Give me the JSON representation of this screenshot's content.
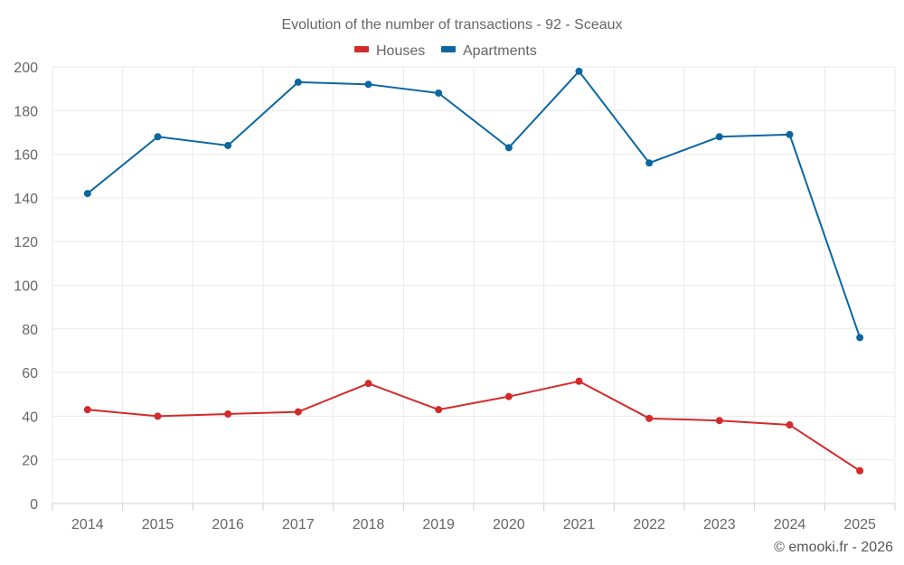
{
  "chart_data": {
    "type": "line",
    "title": "Evolution of the number of transactions - 92 - Sceaux",
    "categories": [
      "2014",
      "2015",
      "2016",
      "2017",
      "2018",
      "2019",
      "2020",
      "2021",
      "2022",
      "2023",
      "2024",
      "2025"
    ],
    "series": [
      {
        "name": "Houses",
        "color": "#d42a2a",
        "values": [
          43,
          40,
          41,
          42,
          55,
          43,
          49,
          56,
          39,
          38,
          36,
          15
        ]
      },
      {
        "name": "Apartments",
        "color": "#0a67a0",
        "values": [
          142,
          168,
          164,
          193,
          192,
          188,
          163,
          198,
          156,
          168,
          169,
          76
        ]
      }
    ],
    "ylim": [
      0,
      200
    ],
    "yticks": [
      0,
      20,
      40,
      60,
      80,
      100,
      120,
      140,
      160,
      180,
      200
    ],
    "grid": true,
    "legend_position": "top-center",
    "xlabel": "",
    "ylabel": ""
  },
  "credit": "© emooki.fr - 2026"
}
